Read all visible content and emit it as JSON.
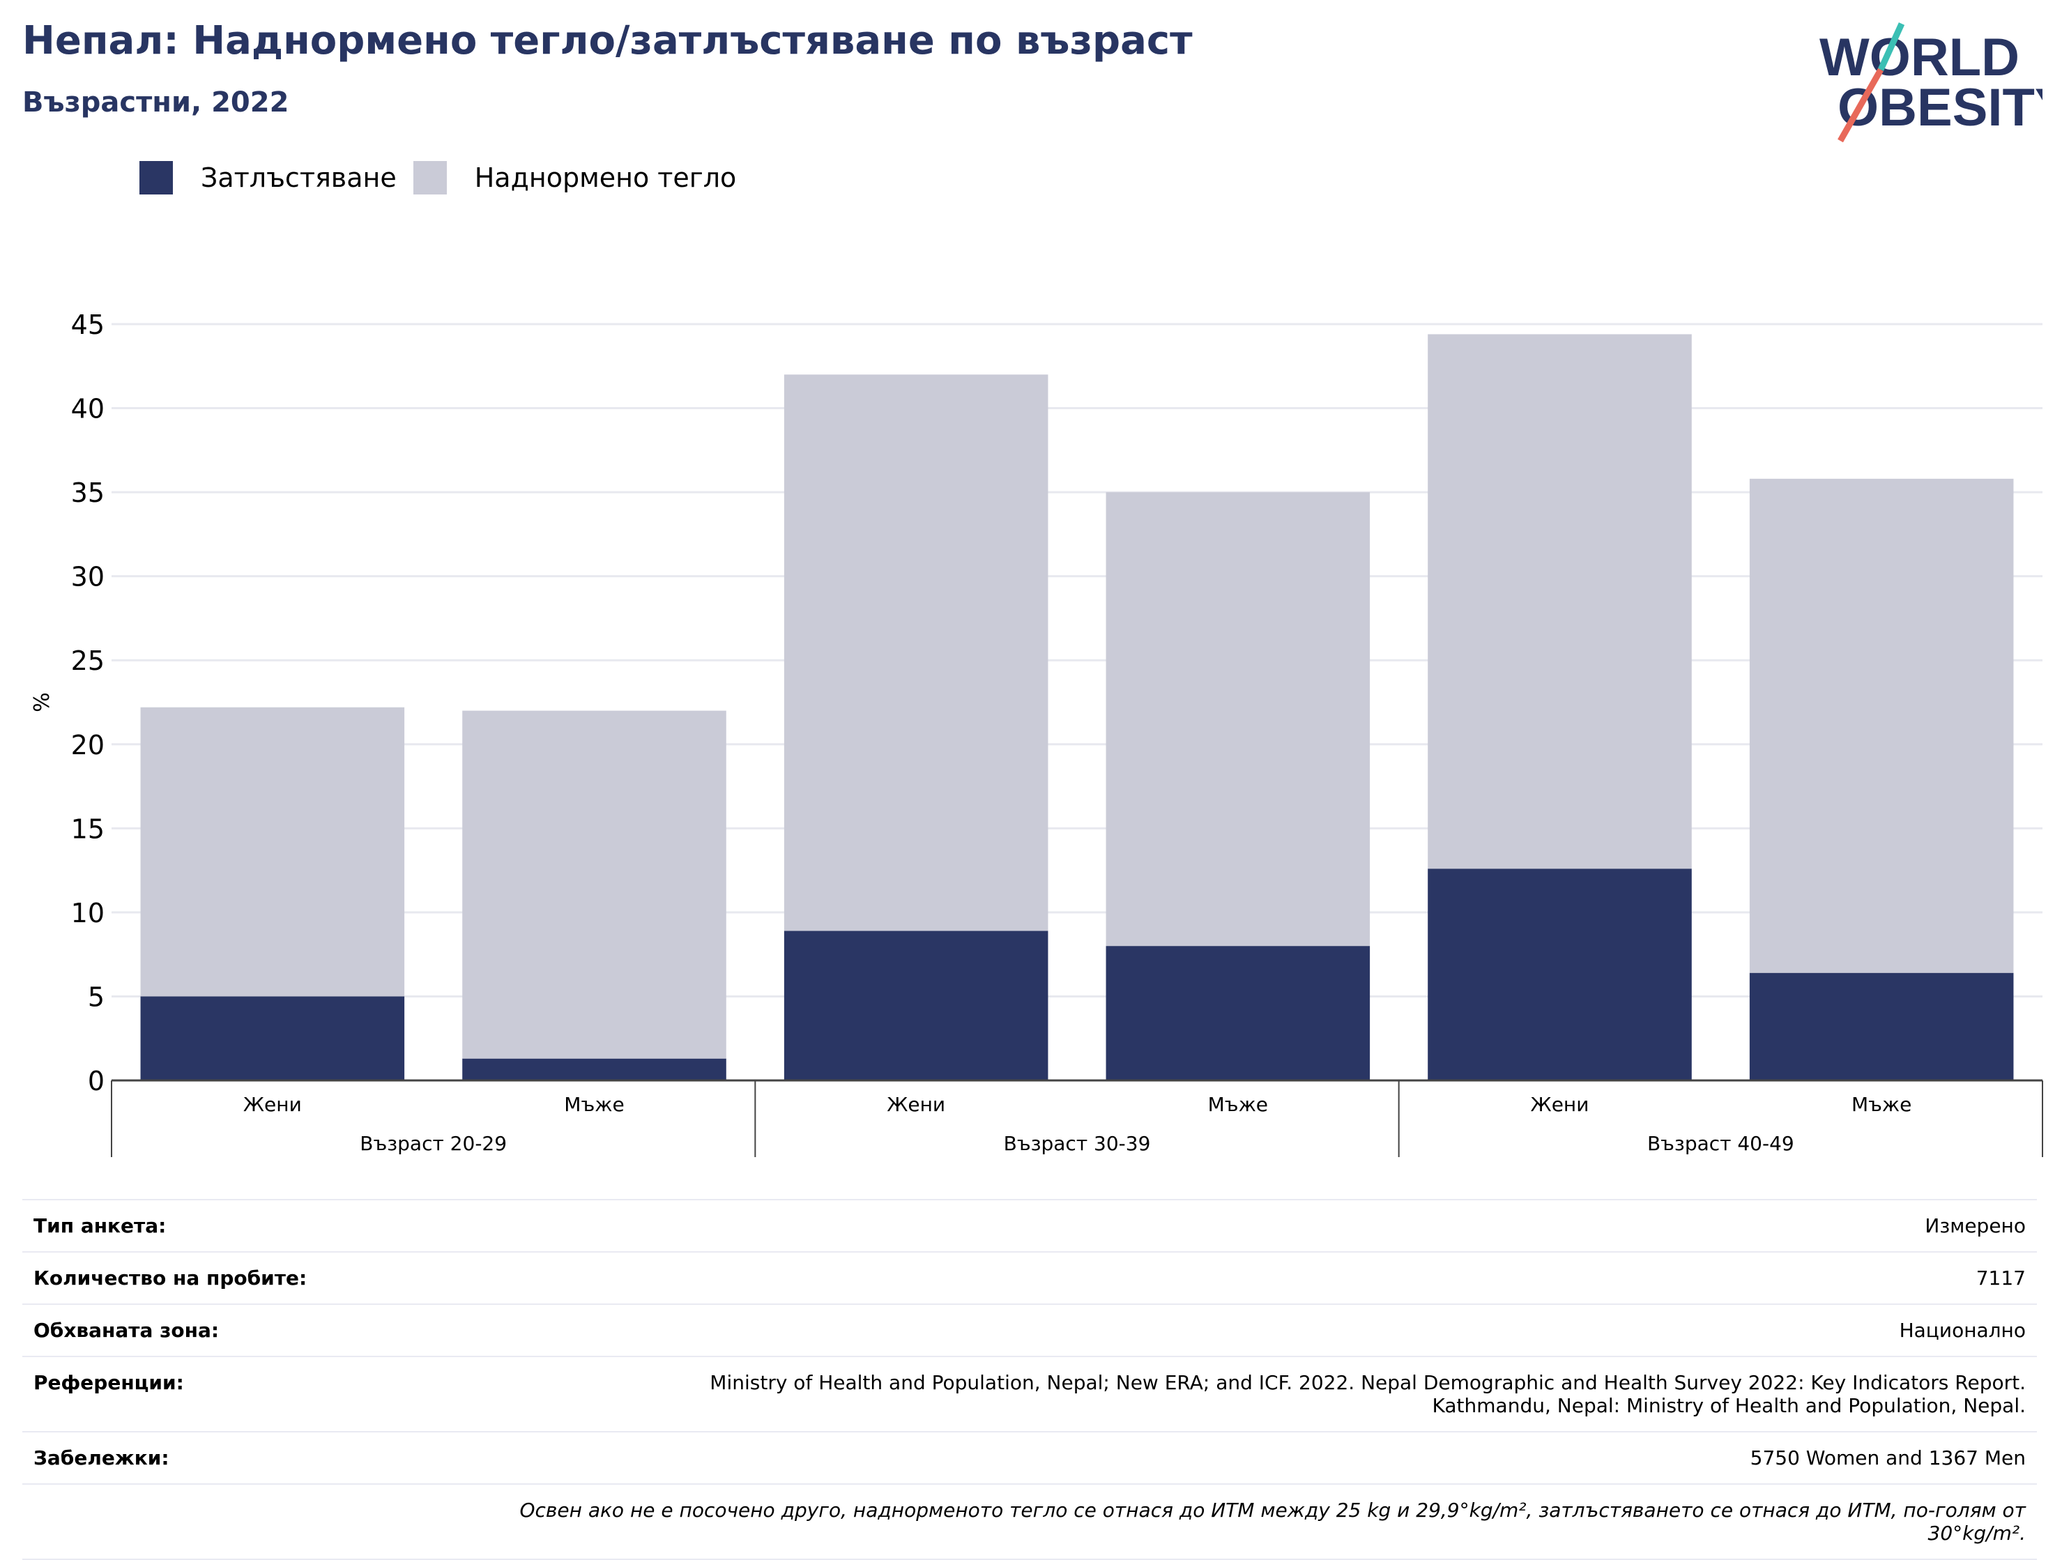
{
  "header": {
    "title": "Непал: Наднормено тегло/затлъстяване по възраст",
    "subtitle": "Възрастни, 2022",
    "logo_line1": "WORLD",
    "logo_line2": "OBESITY"
  },
  "colors": {
    "obesity": "#2a3664",
    "overweight": "#cacbd7",
    "title": "#283562",
    "logo_teal": "#3bbfb4",
    "logo_red": "#e8695a"
  },
  "legend": [
    {
      "label": "Затлъстяване",
      "color": "#2a3664"
    },
    {
      "label": "Наднормено тегло",
      "color": "#cacbd7"
    }
  ],
  "chart_data": {
    "type": "bar",
    "stacked": true,
    "ylabel": "%",
    "ylim": [
      0,
      45
    ],
    "yticks": [
      0,
      5,
      10,
      15,
      20,
      25,
      30,
      35,
      40,
      45
    ],
    "grid": true,
    "legend_position": "top-left",
    "groups": [
      {
        "label": "Възраст 20-29",
        "categories": [
          "Жени",
          "Мъже"
        ]
      },
      {
        "label": "Възраст 30-39",
        "categories": [
          "Жени",
          "Мъже"
        ]
      },
      {
        "label": "Възраст 40-49",
        "categories": [
          "Жени",
          "Мъже"
        ]
      }
    ],
    "series": [
      {
        "name": "Затлъстяване",
        "values": [
          5.0,
          1.3,
          8.9,
          8.0,
          12.6,
          6.4
        ]
      },
      {
        "name": "Наднормено тегло",
        "values": [
          17.2,
          20.7,
          33.1,
          27.0,
          31.8,
          29.4
        ]
      }
    ]
  },
  "meta": {
    "survey_type_label": "Тип анкета:",
    "survey_type_value": "Измерено",
    "sample_size_label": "Количество на пробите:",
    "sample_size_value": "7117",
    "area_label": "Обхваната зона:",
    "area_value": "Национално",
    "references_label": "Референции:",
    "references_value_line1": "Ministry of Health and Population, Nepal; New ERA; and ICF. 2022. Nepal Demographic and Health Survey 2022: Key Indicators Report.",
    "references_value_line2": "Kathmandu, Nepal: Ministry of Health and Population, Nepal.",
    "notes_label": "Забележки:",
    "notes_value": "5750 Women and 1367 Men",
    "definition_note": "Освен ако не е посочено друго, наднорменото тегло се отнася до ИТМ между 25 kg и 29,9°kg/m², затлъстяването се отнася до ИТМ, по-голям от 30°kg/m²."
  }
}
